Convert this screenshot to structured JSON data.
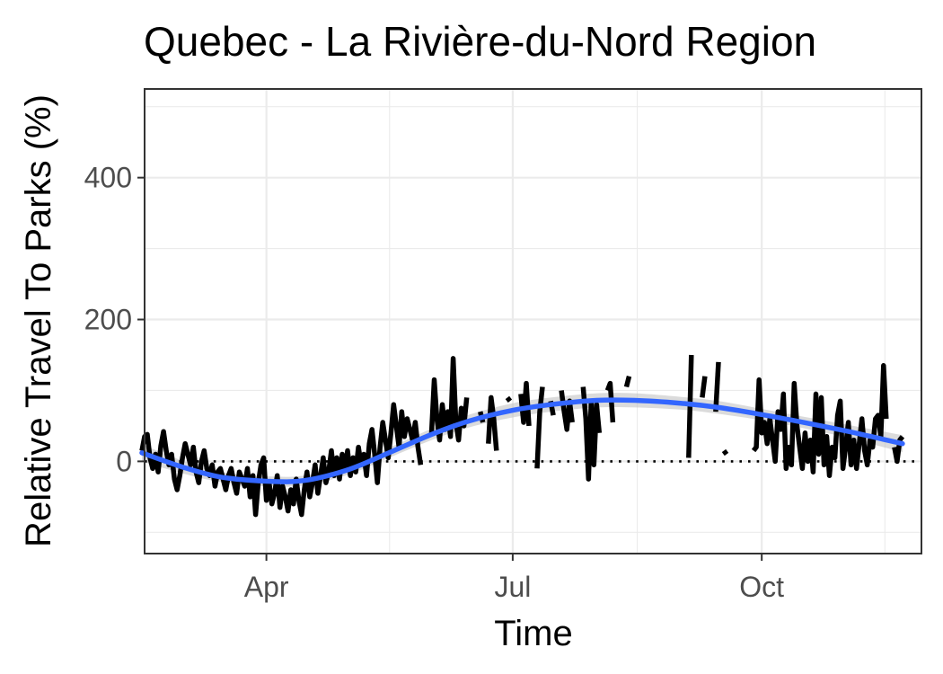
{
  "chart_data": {
    "type": "line",
    "title": "Quebec - La Rivière-du-Nord Region",
    "xlabel": "Time",
    "ylabel": "Relative Travel To Parks (%)",
    "x_ticks": [
      {
        "label": "Apr",
        "date": "2020-04-01"
      },
      {
        "label": "Jul",
        "date": "2020-07-01"
      },
      {
        "label": "Oct",
        "date": "2020-10-01"
      }
    ],
    "y_ticks": [
      0,
      200,
      400
    ],
    "xlim": [
      "2020-02-16",
      "2020-11-29"
    ],
    "ylim": [
      -130,
      525
    ],
    "grid": true,
    "reference_line": {
      "y": 0,
      "style": "dotted"
    },
    "colors": {
      "series": "#000000",
      "trend": "#3366ff",
      "band": "#bdbdbd"
    },
    "series": [
      {
        "values": [
          [
            "2020-02-15",
            15
          ],
          [
            "2020-02-16",
            35
          ],
          [
            "2020-02-17",
            38
          ],
          [
            "2020-02-18",
            5
          ],
          [
            "2020-02-19",
            -10
          ],
          [
            "2020-02-20",
            10
          ],
          [
            "2020-02-21",
            -15
          ],
          [
            "2020-02-22",
            22
          ],
          [
            "2020-02-23",
            42
          ],
          [
            "2020-02-24",
            15
          ],
          [
            "2020-02-25",
            -5
          ],
          [
            "2020-02-26",
            10
          ],
          [
            "2020-02-27",
            -25
          ],
          [
            "2020-02-28",
            -40
          ],
          [
            "2020-02-29",
            -20
          ],
          [
            "2020-03-01",
            5
          ],
          [
            "2020-03-02",
            25
          ],
          [
            "2020-03-03",
            10
          ],
          [
            "2020-03-04",
            -5
          ],
          [
            "2020-03-05",
            20
          ],
          [
            "2020-03-06",
            -15
          ],
          [
            "2020-03-07",
            -30
          ],
          [
            "2020-03-08",
            0
          ],
          [
            "2020-03-09",
            15
          ],
          [
            "2020-03-10",
            -10
          ],
          [
            "2020-03-11",
            -20
          ],
          [
            "2020-03-12",
            -5
          ],
          [
            "2020-03-13",
            -35
          ],
          [
            "2020-03-14",
            -15
          ],
          [
            "2020-03-15",
            -10
          ],
          [
            "2020-03-16",
            -25
          ],
          [
            "2020-03-17",
            -40
          ],
          [
            "2020-03-18",
            -20
          ],
          [
            "2020-03-19",
            -10
          ],
          [
            "2020-03-20",
            -30
          ],
          [
            "2020-03-21",
            -45
          ],
          [
            "2020-03-22",
            -15
          ],
          [
            "2020-03-23",
            -25
          ],
          [
            "2020-03-24",
            -35
          ],
          [
            "2020-03-25",
            -10
          ],
          [
            "2020-03-26",
            -50
          ],
          [
            "2020-03-27",
            -20
          ],
          [
            "2020-03-28",
            -75
          ],
          [
            "2020-03-29",
            -30
          ],
          [
            "2020-03-30",
            -5
          ],
          [
            "2020-03-31",
            5
          ],
          [
            "2020-04-01",
            -55
          ],
          [
            "2020-04-02",
            -30
          ],
          [
            "2020-04-03",
            -60
          ],
          [
            "2020-04-04",
            -45
          ],
          [
            "2020-04-05",
            -20
          ],
          [
            "2020-04-06",
            -65
          ],
          [
            "2020-04-07",
            -35
          ],
          [
            "2020-04-08",
            -50
          ],
          [
            "2020-04-09",
            -70
          ],
          [
            "2020-04-10",
            -40
          ],
          [
            "2020-04-11",
            -60
          ],
          [
            "2020-04-12",
            -25
          ],
          [
            "2020-04-13",
            -55
          ],
          [
            "2020-04-14",
            -75
          ],
          [
            "2020-04-15",
            -40
          ],
          [
            "2020-04-16",
            -15
          ],
          [
            "2020-04-17",
            -50
          ],
          [
            "2020-04-18",
            -30
          ],
          [
            "2020-04-19",
            -5
          ],
          [
            "2020-04-20",
            -45
          ],
          [
            "2020-04-21",
            -20
          ],
          [
            "2020-04-22",
            5
          ],
          [
            "2020-04-23",
            -30
          ],
          [
            "2020-04-24",
            -15
          ],
          [
            "2020-04-25",
            15
          ],
          [
            "2020-04-26",
            -20
          ],
          [
            "2020-04-27",
            5
          ],
          [
            "2020-04-28",
            -25
          ],
          [
            "2020-04-29",
            10
          ],
          [
            "2020-04-30",
            -10
          ],
          [
            "2020-05-01",
            15
          ],
          [
            "2020-05-02",
            -20
          ],
          [
            "2020-05-03",
            5
          ],
          [
            "2020-05-04",
            -15
          ],
          [
            "2020-05-05",
            20
          ],
          [
            "2020-05-06",
            -5
          ],
          [
            "2020-05-07",
            10
          ],
          [
            "2020-05-08",
            -20
          ],
          [
            "2020-05-09",
            25
          ],
          [
            "2020-05-10",
            45
          ],
          [
            "2020-05-11",
            10
          ],
          [
            "2020-05-12",
            -30
          ],
          [
            "2020-05-13",
            20
          ],
          [
            "2020-05-14",
            55
          ],
          [
            "2020-05-15",
            30
          ],
          [
            "2020-05-16",
            5
          ],
          [
            "2020-05-17",
            40
          ],
          [
            "2020-05-18",
            80
          ],
          [
            "2020-05-19",
            50
          ],
          [
            "2020-05-20",
            20
          ],
          [
            "2020-05-21",
            70
          ],
          [
            "2020-05-22",
            35
          ],
          [
            "2020-05-23",
            60
          ],
          [
            "2020-05-24",
            45
          ],
          [
            "2020-05-25",
            30
          ],
          [
            "2020-05-26",
            55
          ],
          [
            "2020-05-27",
            20
          ],
          [
            "2020-05-28",
            -5
          ],
          [
            "2020-06-01",
            40
          ],
          [
            "2020-06-02",
            115
          ],
          [
            "2020-06-03",
            60
          ],
          [
            "2020-06-04",
            30
          ],
          [
            "2020-06-05",
            80
          ],
          [
            "2020-06-06",
            45
          ],
          [
            "2020-06-07",
            70
          ],
          [
            "2020-06-08",
            35
          ],
          [
            "2020-06-09",
            145
          ],
          [
            "2020-06-10",
            55
          ],
          [
            "2020-06-11",
            30
          ],
          [
            "2020-06-12",
            75
          ],
          [
            "2020-06-13",
            50
          ],
          [
            "2020-06-14",
            90
          ],
          [
            "2020-06-19",
            70
          ],
          [
            "2020-06-20",
            55
          ],
          [
            "2020-06-22",
            25
          ],
          [
            "2020-06-23",
            90
          ],
          [
            "2020-06-24",
            60
          ],
          [
            "2020-06-25",
            15
          ],
          [
            "2020-06-29",
            90
          ],
          [
            "2020-06-30",
            85
          ],
          [
            "2020-07-04",
            95
          ],
          [
            "2020-07-05",
            55
          ],
          [
            "2020-07-06",
            110
          ],
          [
            "2020-07-07",
            50
          ],
          [
            "2020-07-10",
            -10
          ],
          [
            "2020-07-11",
            70
          ],
          [
            "2020-07-12",
            105
          ],
          [
            "2020-07-15",
            85
          ],
          [
            "2020-07-16",
            65
          ],
          [
            "2020-07-19",
            100
          ],
          [
            "2020-07-20",
            70
          ],
          [
            "2020-07-21",
            45
          ],
          [
            "2020-07-22",
            85
          ],
          [
            "2020-07-23",
            55
          ],
          [
            "2020-07-27",
            105
          ],
          [
            "2020-07-28",
            60
          ],
          [
            "2020-07-29",
            -25
          ],
          [
            "2020-07-30",
            85
          ],
          [
            "2020-07-31",
            -5
          ],
          [
            "2020-08-01",
            80
          ],
          [
            "2020-08-02",
            40
          ],
          [
            "2020-08-05",
            100
          ],
          [
            "2020-08-06",
            110
          ],
          [
            "2020-08-07",
            55
          ],
          [
            "2020-08-12",
            105
          ],
          [
            "2020-08-13",
            120
          ],
          [
            "2020-09-04",
            5
          ],
          [
            "2020-09-05",
            150
          ],
          [
            "2020-09-09",
            90
          ],
          [
            "2020-09-10",
            120
          ],
          [
            "2020-09-14",
            70
          ],
          [
            "2020-09-15",
            140
          ],
          [
            "2020-09-17",
            15
          ],
          [
            "2020-09-18",
            10
          ],
          [
            "2020-09-28",
            15
          ],
          [
            "2020-09-29",
            20
          ],
          [
            "2020-09-30",
            115
          ],
          [
            "2020-10-01",
            40
          ],
          [
            "2020-10-02",
            55
          ],
          [
            "2020-10-03",
            25
          ],
          [
            "2020-10-04",
            60
          ],
          [
            "2020-10-05",
            30
          ],
          [
            "2020-10-06",
            0
          ],
          [
            "2020-10-07",
            70
          ],
          [
            "2020-10-08",
            45
          ],
          [
            "2020-10-09",
            95
          ],
          [
            "2020-10-10",
            -10
          ],
          [
            "2020-10-11",
            20
          ],
          [
            "2020-10-12",
            -5
          ],
          [
            "2020-10-13",
            110
          ],
          [
            "2020-10-14",
            50
          ],
          [
            "2020-10-15",
            20
          ],
          [
            "2020-10-16",
            -10
          ],
          [
            "2020-10-17",
            40
          ],
          [
            "2020-10-18",
            0
          ],
          [
            "2020-10-19",
            30
          ],
          [
            "2020-10-20",
            -15
          ],
          [
            "2020-10-21",
            95
          ],
          [
            "2020-10-22",
            10
          ],
          [
            "2020-10-23",
            90
          ],
          [
            "2020-10-24",
            -5
          ],
          [
            "2020-10-25",
            35
          ],
          [
            "2020-10-26",
            -20
          ],
          [
            "2020-10-27",
            20
          ],
          [
            "2020-10-28",
            5
          ],
          [
            "2020-10-29",
            65
          ],
          [
            "2020-10-30",
            85
          ],
          [
            "2020-10-31",
            -10
          ],
          [
            "2020-11-01",
            20
          ],
          [
            "2020-11-02",
            55
          ],
          [
            "2020-11-03",
            -5
          ],
          [
            "2020-11-04",
            30
          ],
          [
            "2020-11-05",
            -10
          ],
          [
            "2020-11-06",
            25
          ],
          [
            "2020-11-07",
            60
          ],
          [
            "2020-11-08",
            15
          ],
          [
            "2020-11-09",
            -5
          ],
          [
            "2020-11-10",
            30
          ],
          [
            "2020-11-11",
            20
          ],
          [
            "2020-11-12",
            60
          ],
          [
            "2020-11-13",
            65
          ],
          [
            "2020-11-14",
            35
          ],
          [
            "2020-11-15",
            135
          ],
          [
            "2020-11-16",
            60
          ],
          [
            "2020-11-19",
            20
          ],
          [
            "2020-11-20",
            0
          ],
          [
            "2020-11-21",
            30
          ],
          [
            "2020-11-22",
            35
          ]
        ]
      }
    ],
    "trend": [
      {
        "x": "2020-02-15",
        "y": 12,
        "band": 12
      },
      {
        "x": "2020-03-01",
        "y": -8,
        "band": 9
      },
      {
        "x": "2020-03-15",
        "y": -22,
        "band": 7
      },
      {
        "x": "2020-04-01",
        "y": -28,
        "band": 7
      },
      {
        "x": "2020-04-15",
        "y": -27,
        "band": 7
      },
      {
        "x": "2020-05-01",
        "y": -12,
        "band": 7
      },
      {
        "x": "2020-05-15",
        "y": 10,
        "band": 7
      },
      {
        "x": "2020-06-01",
        "y": 38,
        "band": 8
      },
      {
        "x": "2020-06-15",
        "y": 57,
        "band": 9
      },
      {
        "x": "2020-07-01",
        "y": 72,
        "band": 10
      },
      {
        "x": "2020-07-15",
        "y": 80,
        "band": 10
      },
      {
        "x": "2020-08-01",
        "y": 86,
        "band": 10
      },
      {
        "x": "2020-08-15",
        "y": 86,
        "band": 10
      },
      {
        "x": "2020-09-01",
        "y": 82,
        "band": 9
      },
      {
        "x": "2020-09-15",
        "y": 76,
        "band": 9
      },
      {
        "x": "2020-10-01",
        "y": 66,
        "band": 8
      },
      {
        "x": "2020-10-15",
        "y": 56,
        "band": 8
      },
      {
        "x": "2020-11-01",
        "y": 43,
        "band": 9
      },
      {
        "x": "2020-11-15",
        "y": 31,
        "band": 11
      },
      {
        "x": "2020-11-22",
        "y": 25,
        "band": 12
      }
    ]
  }
}
